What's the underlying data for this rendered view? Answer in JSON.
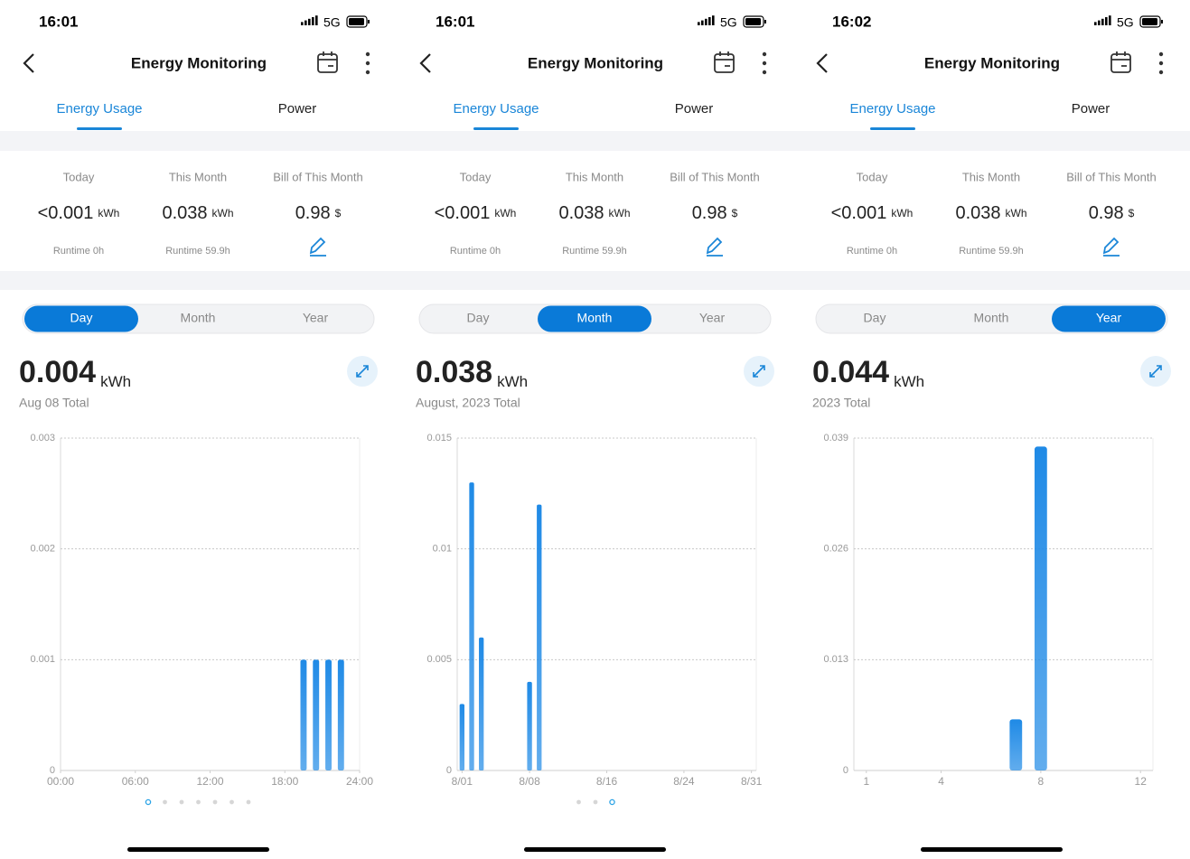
{
  "screens": [
    {
      "time": "16:01",
      "network": "5G",
      "title": "Energy Monitoring",
      "tabs": [
        "Energy Usage",
        "Power"
      ],
      "stats": [
        {
          "label": "Today",
          "value": "<0.001",
          "unit": "kWh",
          "note": "Runtime 0h"
        },
        {
          "label": "This Month",
          "value": 0.038,
          "unit": "kWh",
          "note": "Runtime 59.9h"
        },
        {
          "label": "Bill of This Month",
          "value": 0.98,
          "unit": "$"
        }
      ],
      "periods": [
        "Day",
        "Month",
        "Year"
      ],
      "selected_period": 0,
      "total": 0.004,
      "total_unit": "kWh",
      "total_label": "Aug 08 Total",
      "pages": 7,
      "page": 0
    },
    {
      "time": "16:01",
      "network": "5G",
      "title": "Energy Monitoring",
      "tabs": [
        "Energy Usage",
        "Power"
      ],
      "stats": [
        {
          "label": "Today",
          "value": "<0.001",
          "unit": "kWh",
          "note": "Runtime 0h"
        },
        {
          "label": "This Month",
          "value": 0.038,
          "unit": "kWh",
          "note": "Runtime 59.9h"
        },
        {
          "label": "Bill of This Month",
          "value": 0.98,
          "unit": "$"
        }
      ],
      "periods": [
        "Day",
        "Month",
        "Year"
      ],
      "selected_period": 1,
      "total": 0.038,
      "total_unit": "kWh",
      "total_label": "August, 2023 Total",
      "pages": 3,
      "page": 2
    },
    {
      "time": "16:02",
      "network": "5G",
      "title": "Energy Monitoring",
      "tabs": [
        "Energy Usage",
        "Power"
      ],
      "stats": [
        {
          "label": "Today",
          "value": "<0.001",
          "unit": "kWh",
          "note": "Runtime 0h"
        },
        {
          "label": "This Month",
          "value": 0.038,
          "unit": "kWh",
          "note": "Runtime 59.9h"
        },
        {
          "label": "Bill of This Month",
          "value": 0.98,
          "unit": "$"
        }
      ],
      "periods": [
        "Day",
        "Month",
        "Year"
      ],
      "selected_period": 2,
      "total": 0.044,
      "total_unit": "kWh",
      "total_label": "2023 Total"
    }
  ],
  "chart_data": [
    {
      "type": "bar",
      "x": [
        19.5,
        20.5,
        21.5,
        22.5
      ],
      "values": [
        0.001,
        0.001,
        0.001,
        0.001
      ],
      "color": "#1f8ae6",
      "xlim": [
        0,
        24
      ],
      "xticks": [
        {
          "value": 0,
          "label": "00:00"
        },
        {
          "value": 6,
          "label": "06:00"
        },
        {
          "value": 12,
          "label": "12:00"
        },
        {
          "value": 18,
          "label": "18:00"
        },
        {
          "value": 24,
          "label": "24:00"
        }
      ],
      "ylim": [
        0,
        0.003
      ],
      "yticks": [
        0,
        0.001,
        0.002,
        0.003
      ],
      "grid": true
    },
    {
      "type": "bar",
      "x": [
        1,
        2,
        3,
        8,
        9
      ],
      "values": [
        0.003,
        0.013,
        0.006,
        0.004,
        0.012
      ],
      "color": "#1f8ae6",
      "xlim": [
        0.5,
        31.5
      ],
      "xticks": [
        {
          "value": 1,
          "label": "8/01"
        },
        {
          "value": 8,
          "label": "8/08"
        },
        {
          "value": 16,
          "label": "8/16"
        },
        {
          "value": 24,
          "label": "8/24"
        },
        {
          "value": 31,
          "label": "8/31"
        }
      ],
      "ylim": [
        0,
        0.015
      ],
      "yticks": [
        0,
        0.005,
        0.01,
        0.015
      ],
      "grid": true
    },
    {
      "type": "bar",
      "x": [
        7,
        8
      ],
      "values": [
        0.006,
        0.038
      ],
      "color": "#1f8ae6",
      "xlim": [
        0.5,
        12.5
      ],
      "xticks": [
        1,
        4,
        8,
        12
      ],
      "ylim": [
        0,
        0.039
      ],
      "yticks": [
        0,
        0.013,
        0.026,
        0.039
      ],
      "grid": true
    }
  ]
}
